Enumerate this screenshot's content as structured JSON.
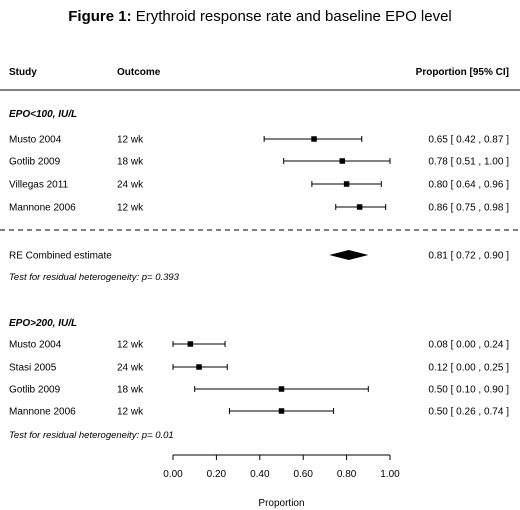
{
  "figure": {
    "label": "Figure 1:",
    "title": "Erythroid response rate and baseline EPO level"
  },
  "chart_data": {
    "type": "forest",
    "columns": {
      "study": "Study",
      "outcome": "Outcome",
      "estimate": "Proportion [95% CI]"
    },
    "xlabel": "Proportion",
    "xlim": [
      0,
      1
    ],
    "xticks": [
      "0.00",
      "0.20",
      "0.40",
      "0.60",
      "0.80",
      "1.00"
    ],
    "groups": [
      {
        "label": "EPO<100, IU/L",
        "studies": [
          {
            "study": "Musto 2004",
            "outcome": "12 wk",
            "est": 0.65,
            "lo": 0.42,
            "hi": 0.87,
            "text": "0.65 [ 0.42 , 0.87 ]"
          },
          {
            "study": "Gotlib 2009",
            "outcome": "18 wk",
            "est": 0.78,
            "lo": 0.51,
            "hi": 1.0,
            "text": "0.78 [ 0.51 , 1.00 ]"
          },
          {
            "study": "Villegas 2011",
            "outcome": "24 wk",
            "est": 0.8,
            "lo": 0.64,
            "hi": 0.96,
            "text": "0.80 [ 0.64 , 0.96 ]"
          },
          {
            "study": "Mannone 2006",
            "outcome": "12 wk",
            "est": 0.86,
            "lo": 0.75,
            "hi": 0.98,
            "text": "0.86 [ 0.75 , 0.98 ]"
          }
        ],
        "combined": {
          "label": "RE Combined estimate",
          "est": 0.81,
          "lo": 0.72,
          "hi": 0.9,
          "text": "0.81 [ 0.72 , 0.90 ]"
        },
        "heterogeneity": "Test for residual heterogeneity: p= 0.393"
      },
      {
        "label": "EPO>200, IU/L",
        "studies": [
          {
            "study": "Musto 2004",
            "outcome": "12 wk",
            "est": 0.08,
            "lo": 0.0,
            "hi": 0.24,
            "text": "0.08 [ 0.00 , 0.24 ]"
          },
          {
            "study": "Stasi 2005",
            "outcome": "24 wk",
            "est": 0.12,
            "lo": 0.0,
            "hi": 0.25,
            "text": "0.12 [ 0.00 , 0.25 ]"
          },
          {
            "study": "Gotlib 2009",
            "outcome": "18 wk",
            "est": 0.5,
            "lo": 0.1,
            "hi": 0.9,
            "text": "0.50 [ 0.10 , 0.90 ]"
          },
          {
            "study": "Mannone 2006",
            "outcome": "12 wk",
            "est": 0.5,
            "lo": 0.26,
            "hi": 0.74,
            "text": "0.50 [ 0.26 , 0.74 ]"
          }
        ],
        "heterogeneity": "Test for residual heterogeneity: p= 0.01"
      }
    ]
  }
}
